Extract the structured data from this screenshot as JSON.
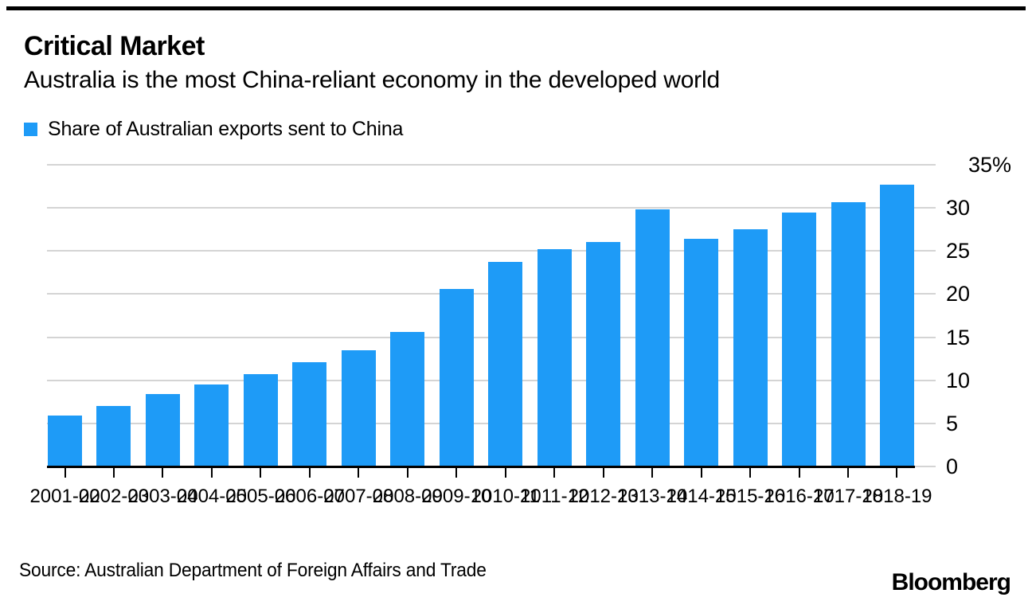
{
  "header": {
    "title": "Critical Market",
    "subtitle": "Australia is the most China-reliant economy in the developed world"
  },
  "legend": {
    "label": "Share of Australian exports sent to China",
    "swatch_color": "#1e9bf7"
  },
  "chart_data": {
    "type": "bar",
    "title": "Critical Market",
    "subtitle": "Australia is the most China-reliant economy in the developed world",
    "legend": [
      "Share of Australian exports sent to China"
    ],
    "categories": [
      "2001-02",
      "2002-03",
      "2003-04",
      "2004-05",
      "2005-06",
      "2006-07",
      "2007-08",
      "2008-09",
      "2009-10",
      "2010-11",
      "2011-12",
      "2012-13",
      "2013-14",
      "2014-15",
      "2015-16",
      "2016-17",
      "2017-18",
      "2018-19"
    ],
    "values": [
      5.9,
      7.0,
      8.4,
      9.5,
      10.7,
      12.1,
      13.5,
      15.6,
      20.6,
      23.7,
      25.2,
      26.0,
      29.8,
      26.4,
      27.5,
      29.5,
      30.7,
      32.7
    ],
    "ylabel": "%",
    "ylim": [
      0,
      35
    ],
    "ytick_values": [
      0,
      5,
      10,
      15,
      20,
      25,
      30,
      35
    ],
    "ytick_labels": [
      "0",
      "5",
      "10",
      "15",
      "20",
      "25",
      "30",
      "35%"
    ],
    "grid": "on",
    "legend_position": "top-left",
    "bar_color": "#1e9bf7",
    "grid_color": "#d4d4d4",
    "axis_color": "#000000"
  },
  "footer": {
    "source": "Source: Australian Department of Foreign Affairs and Trade",
    "brand": "Bloomberg"
  }
}
